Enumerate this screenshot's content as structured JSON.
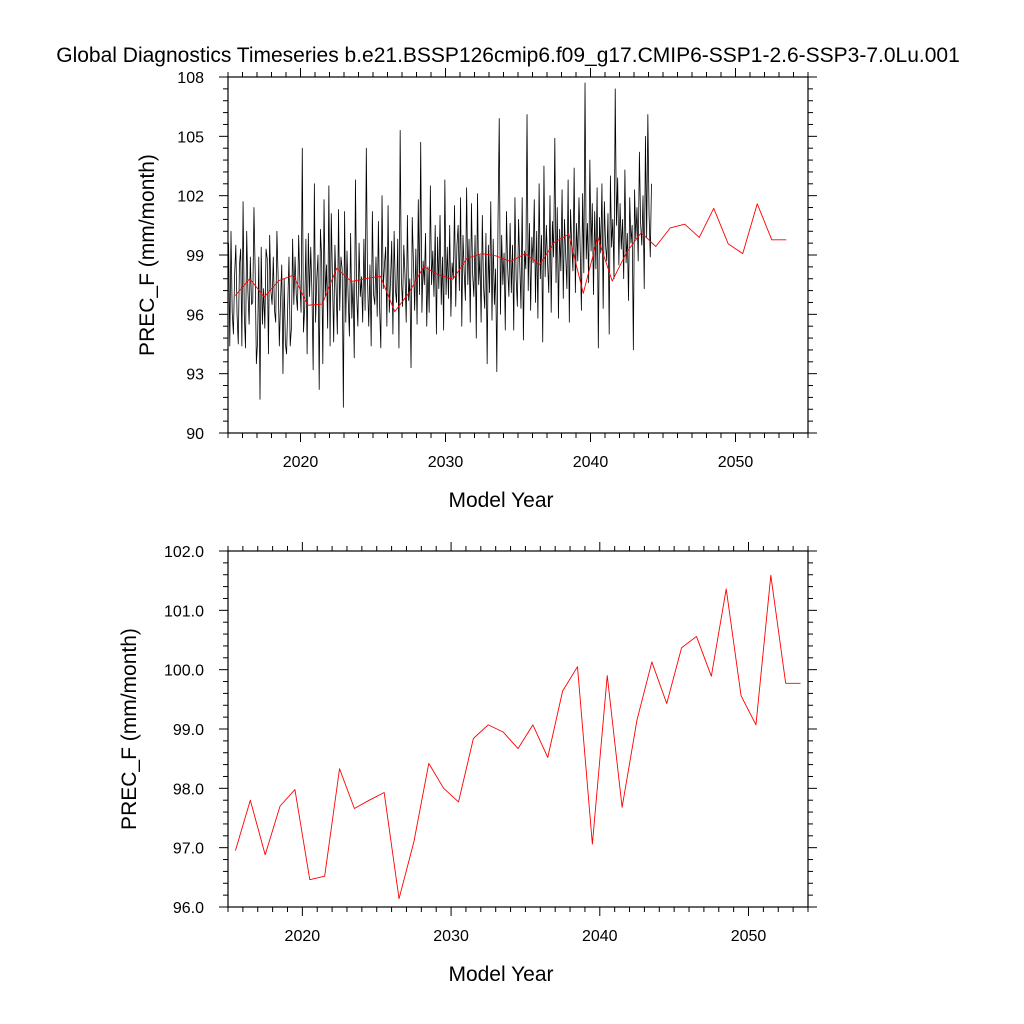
{
  "page_title": "Global Diagnostics Timeseries b.e21.BSSP126cmip6.f09_g17.CMIP6-SSP1-2.6-SSP3-7.0Lu.001",
  "colors": {
    "monthly_line": "#000000",
    "annual_line": "#ff0000",
    "axes": "#000000"
  },
  "chart_data": [
    {
      "type": "line",
      "title": "Global Diagnostics Timeseries b.e21.BSSP126cmip6.f09_g17.CMIP6-SSP1-2.6-SSP3-7.0Lu.001",
      "xlabel": "Model Year",
      "ylabel": "PREC_F (mm/month)",
      "xlim": [
        2015,
        2055
      ],
      "ylim": [
        90,
        108
      ],
      "x_ticks": [
        2020,
        2030,
        2040,
        2050
      ],
      "y_ticks": [
        90,
        93,
        96,
        99,
        102,
        105,
        108
      ],
      "y_tick_labels": [
        "90",
        "93",
        "96",
        "99",
        "102",
        "105",
        "108"
      ],
      "series": [
        {
          "style": "monthly",
          "x_start": 2015.04,
          "x_step": 0.08333,
          "values": [
            99.6,
            94.4,
            100.2,
            96.1,
            95.0,
            98.0,
            99.5,
            96.0,
            94.5,
            98.5,
            99.3,
            94.4,
            101.7,
            96.0,
            94.3,
            100.2,
            97.2,
            95.5,
            98.9,
            96.5,
            96.6,
            101.4,
            98.2,
            93.5,
            94.6,
            98.9,
            91.7,
            99.4,
            95.5,
            97.3,
            95.3,
            99.3,
            98.8,
            94.0,
            100.0,
            97.2,
            96.5,
            98.9,
            96.2,
            95.6,
            100.2,
            97.9,
            94.4,
            96.7,
            98.5,
            93.0,
            97.8,
            94.5,
            94.0,
            96.6,
            98.9,
            94.4,
            95.3,
            99.8,
            96.5,
            98.9,
            97.0,
            96.2,
            100.0,
            97.6,
            96.1,
            104.4,
            95.1,
            96.3,
            99.8,
            94.0,
            100.1,
            96.9,
            99.4,
            97.1,
            93.2,
            102.6,
            95.6,
            97.8,
            99.0,
            92.2,
            100.3,
            98.9,
            93.5,
            101.8,
            96.9,
            98.5,
            95.3,
            102.5,
            94.4,
            101.1,
            97.7,
            94.6,
            99.5,
            97.3,
            95.0,
            101.3,
            96.2,
            98.9,
            98.3,
            91.3,
            101.2,
            95.6,
            99.2,
            96.8,
            94.9,
            100.1,
            95.8,
            97.6,
            93.8,
            102.8,
            97.0,
            95.4,
            99.6,
            96.9,
            97.9,
            95.6,
            99.8,
            96.2,
            104.4,
            97.7,
            95.4,
            98.5,
            94.4,
            101.2,
            97.0,
            96.5,
            98.9,
            95.9,
            100.7,
            96.3,
            94.3,
            102.0,
            97.3,
            98.5,
            99.4,
            95.4,
            101.5,
            96.1,
            97.6,
            99.7,
            95.0,
            100.2,
            97.3,
            96.6,
            99.8,
            94.3,
            105.3,
            97.8,
            96.4,
            99.5,
            98.0,
            95.6,
            101.0,
            96.7,
            97.8,
            93.3,
            100.9,
            98.6,
            96.2,
            99.3,
            95.5,
            101.8,
            97.0,
            104.7,
            96.1,
            98.7,
            97.5,
            100.1,
            95.4,
            98.4,
            96.1,
            102.5,
            97.5,
            99.2,
            96.9,
            100.5,
            95.0,
            99.9,
            97.3,
            101.0,
            96.5,
            98.9,
            95.2,
            102.8,
            97.0,
            99.4,
            96.8,
            100.5,
            95.9,
            98.6,
            97.8,
            101.5,
            96.4,
            99.5,
            100.5,
            97.2,
            101.9,
            95.4,
            100.0,
            98.1,
            96.7,
            102.4,
            97.5,
            99.8,
            95.6,
            101.6,
            98.0,
            96.9,
            100.0,
            94.8,
            102.1,
            97.5,
            99.0,
            95.6,
            101.0,
            97.4,
            96.3,
            100.1,
            93.5,
            99.5,
            97.1,
            101.7,
            95.7,
            99.8,
            96.5,
            98.3,
            93.1,
            100.8,
            105.9,
            96.0,
            100.0,
            97.5,
            99.1,
            95.2,
            101.2,
            98.3,
            96.9,
            100.6,
            97.1,
            99.5,
            95.2,
            101.9,
            97.8,
            96.4,
            100.8,
            98.5,
            96.3,
            101.9,
            94.7,
            99.2,
            98.3,
            106.1,
            97.2,
            100.6,
            96.2,
            99.9,
            98.6,
            101.8,
            96.6,
            100.2,
            95.8,
            102.6,
            97.8,
            100.0,
            94.6,
            103.5,
            97.9,
            100.5,
            98.6,
            97.1,
            102.0,
            96.1,
            100.7,
            98.9,
            104.9,
            97.6,
            101.4,
            95.8,
            100.3,
            98.2,
            102.3,
            96.8,
            100.8,
            99.0,
            97.3,
            102.8,
            95.6,
            101.3,
            99.5,
            98.2,
            103.4,
            97.1,
            100.6,
            98.7,
            101.9,
            99.3,
            96.2,
            102.1,
            98.1,
            107.7,
            98.8,
            100.6,
            97.6,
            103.8,
            99.2,
            101.6,
            97.0,
            101.2,
            98.3,
            102.4,
            94.3,
            100.9,
            99.1,
            102.6,
            96.3,
            101.7,
            99.5,
            98.7,
            101.1,
            95.0,
            103.0,
            99.4,
            100.8,
            97.8,
            107.4,
            100.5,
            102.9,
            98.5,
            101.6,
            99.3,
            100.8,
            97.8,
            103.3,
            98.6,
            100.1,
            96.7,
            101.9,
            99.6,
            100.5,
            94.2,
            102.3,
            99.8,
            101.4,
            98.7,
            104.2,
            100.6,
            99.5,
            102.0,
            97.3,
            105.0,
            99.9,
            106.1,
            101.1,
            98.9,
            102.6
          ]
        },
        {
          "style": "annual",
          "x": [
            2015.5,
            2016.5,
            2017.5,
            2018.5,
            2019.5,
            2020.5,
            2021.5,
            2022.5,
            2023.5,
            2024.5,
            2025.5,
            2026.5,
            2027.5,
            2028.5,
            2029.5,
            2030.5,
            2031.5,
            2032.5,
            2033.5,
            2034.5,
            2035.5,
            2036.5,
            2037.5,
            2038.5,
            2039.5,
            2040.5,
            2041.5,
            2042.5,
            2043.5,
            2044.5,
            2045.5,
            2046.5,
            2047.5,
            2048.5,
            2049.5,
            2050.5,
            2051.5,
            2052.5,
            2053.5
          ],
          "values": [
            96.95,
            97.8,
            96.88,
            97.7,
            97.98,
            96.46,
            96.52,
            98.33,
            97.66,
            97.8,
            97.93,
            96.14,
            97.1,
            98.42,
            98.0,
            97.77,
            98.84,
            99.07,
            98.95,
            98.67,
            99.07,
            98.52,
            99.64,
            100.05,
            97.06,
            99.9,
            97.68,
            99.15,
            100.13,
            99.43,
            100.37,
            100.56,
            99.89,
            101.36,
            99.56,
            99.07,
            101.59,
            99.77,
            99.77
          ]
        }
      ]
    },
    {
      "type": "line",
      "xlabel": "Model Year",
      "ylabel": "PREC_F (mm/month)",
      "xlim": [
        2015,
        2054
      ],
      "ylim": [
        96.0,
        102.0
      ],
      "x_ticks": [
        2020,
        2030,
        2040,
        2050
      ],
      "y_ticks": [
        96,
        97,
        98,
        99,
        100,
        101,
        102
      ],
      "y_tick_labels": [
        "96.0",
        "97.0",
        "98.0",
        "99.0",
        "100.0",
        "101.0",
        "102.0"
      ],
      "series": [
        {
          "style": "annual",
          "x": [
            2015.5,
            2016.5,
            2017.5,
            2018.5,
            2019.5,
            2020.5,
            2021.5,
            2022.5,
            2023.5,
            2024.5,
            2025.5,
            2026.5,
            2027.5,
            2028.5,
            2029.5,
            2030.5,
            2031.5,
            2032.5,
            2033.5,
            2034.5,
            2035.5,
            2036.5,
            2037.5,
            2038.5,
            2039.5,
            2040.5,
            2041.5,
            2042.5,
            2043.5,
            2044.5,
            2045.5,
            2046.5,
            2047.5,
            2048.5,
            2049.5,
            2050.5,
            2051.5,
            2052.5,
            2053.5
          ],
          "values": [
            96.95,
            97.8,
            96.88,
            97.7,
            97.98,
            96.46,
            96.52,
            98.33,
            97.66,
            97.8,
            97.93,
            96.14,
            97.1,
            98.42,
            98.0,
            97.77,
            98.84,
            99.07,
            98.95,
            98.67,
            99.07,
            98.52,
            99.64,
            100.05,
            97.06,
            99.9,
            97.68,
            99.15,
            100.13,
            99.43,
            100.37,
            100.56,
            99.89,
            101.36,
            99.56,
            99.07,
            101.59,
            99.77,
            99.77
          ]
        }
      ]
    }
  ]
}
